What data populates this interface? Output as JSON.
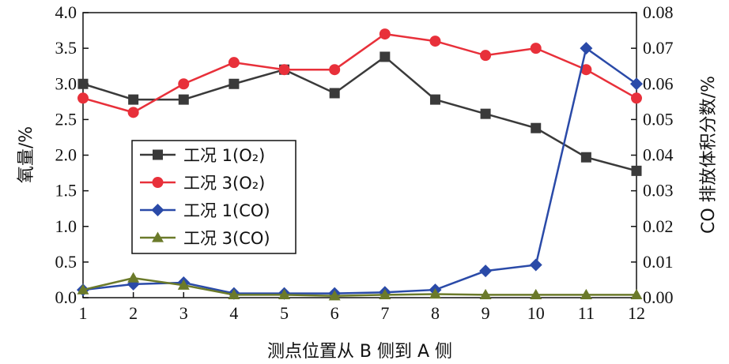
{
  "chart_data": {
    "type": "line",
    "xlabel": "测点位置从 B 侧到 A 侧",
    "ylabel_left": "氧量/%",
    "ylabel_right": "CO 排放体积分数/%",
    "x": [
      1,
      2,
      3,
      4,
      5,
      6,
      7,
      8,
      9,
      10,
      11,
      12
    ],
    "x_ticks": [
      "1",
      "2",
      "3",
      "4",
      "5",
      "6",
      "7",
      "8",
      "9",
      "10",
      "11",
      "12"
    ],
    "ylim_left": [
      0,
      4.0
    ],
    "yticks_left": [
      "0.0",
      "0.5",
      "1.0",
      "1.5",
      "2.0",
      "2.5",
      "3.0",
      "3.5",
      "4.0"
    ],
    "ylim_right": [
      0,
      0.08
    ],
    "yticks_right": [
      "0.00",
      "0.01",
      "0.02",
      "0.03",
      "0.04",
      "0.05",
      "0.06",
      "0.07",
      "0.08"
    ],
    "legend_position": "left-middle",
    "series": [
      {
        "name": "工况 1(O₂)",
        "axis": "left",
        "color": "#3a3a3a",
        "marker": "square",
        "values": [
          3.0,
          2.78,
          2.78,
          3.0,
          3.2,
          2.87,
          3.38,
          2.78,
          2.58,
          2.38,
          1.97,
          1.78
        ]
      },
      {
        "name": "工况 3(O₂)",
        "axis": "left",
        "color": "#e8303a",
        "marker": "circle",
        "values": [
          2.8,
          2.6,
          3.0,
          3.3,
          3.2,
          3.2,
          3.7,
          3.6,
          3.4,
          3.5,
          3.2,
          2.8
        ]
      },
      {
        "name": "工况 1(CO)",
        "axis": "right",
        "color": "#2a4aa8",
        "marker": "diamond",
        "values": [
          0.0022,
          0.0038,
          0.0042,
          0.0012,
          0.0012,
          0.0012,
          0.0015,
          0.0022,
          0.0075,
          0.0092,
          0.07,
          0.06
        ]
      },
      {
        "name": "工况 3(CO)",
        "axis": "right",
        "color": "#6b7a2a",
        "marker": "triangle",
        "values": [
          0.0022,
          0.0055,
          0.0035,
          0.0008,
          0.0008,
          0.0005,
          0.0008,
          0.001,
          0.0008,
          0.0008,
          0.0008,
          0.0008
        ]
      }
    ]
  }
}
